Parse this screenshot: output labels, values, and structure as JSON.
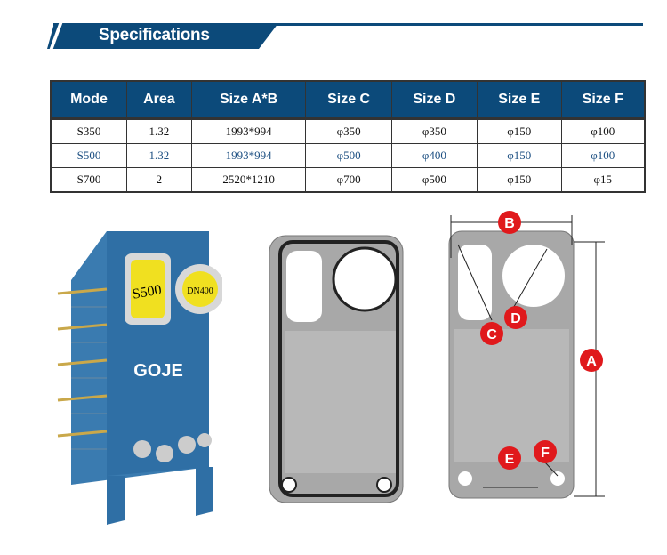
{
  "section_title": "Specifications",
  "table": {
    "headers": [
      "Mode",
      "Area",
      "Size A*B",
      "Size C",
      "Size D",
      "Size E",
      "Size F"
    ],
    "rows": [
      [
        "S350",
        "1.32",
        "1993*994",
        "φ350",
        "φ350",
        "φ150",
        "φ100"
      ],
      [
        "S500",
        "1.32",
        "1993*994",
        "φ500",
        "φ400",
        "φ150",
        "φ100"
      ],
      [
        "S700",
        "2",
        "2520*1210",
        "φ700",
        "φ500",
        "φ150",
        "φ15"
      ]
    ]
  },
  "product": {
    "brand": "GOJE",
    "plate_label": "S500",
    "flange_label": "DN400"
  },
  "diagram_labels": {
    "a": "A",
    "b": "B",
    "c": "C",
    "d": "D",
    "e": "E",
    "f": "F"
  },
  "colors": {
    "brand_blue": "#0c4a7a",
    "label_red": "#e0191c"
  }
}
